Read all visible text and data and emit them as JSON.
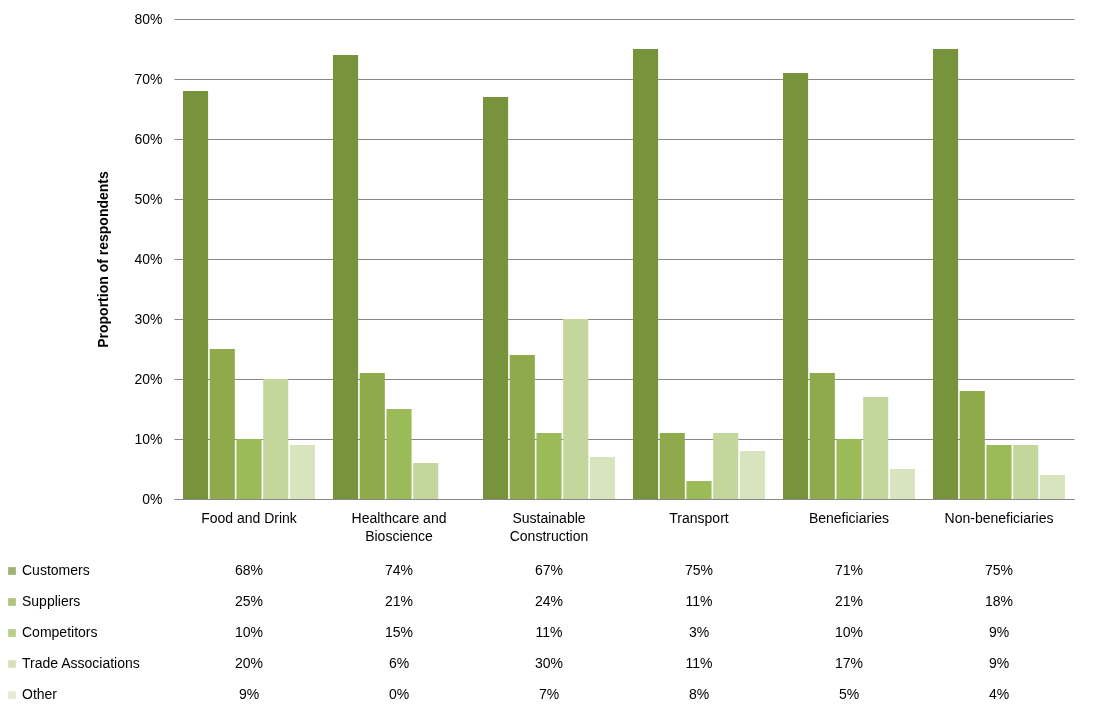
{
  "chart_data": {
    "type": "bar",
    "ylabel": "Proportion of respondents",
    "categories": [
      "Food and Drink",
      "Healthcare and Bioscience",
      "Sustainable Construction",
      "Transport",
      "Beneficiaries",
      "Non-beneficiaries"
    ],
    "series": [
      {
        "name": "Customers",
        "color": "#77933c",
        "values": [
          68,
          74,
          67,
          75,
          71,
          75
        ],
        "value_labels": [
          "68%",
          "74%",
          "67%",
          "75%",
          "71%",
          "75%"
        ]
      },
      {
        "name": "Suppliers",
        "color": "#8eaa4b",
        "values": [
          25,
          21,
          24,
          11,
          21,
          18
        ],
        "value_labels": [
          "25%",
          "21%",
          "24%",
          "11%",
          "21%",
          "18%"
        ]
      },
      {
        "name": "Competitors",
        "color": "#9bbb59",
        "values": [
          10,
          15,
          11,
          3,
          10,
          9
        ],
        "value_labels": [
          "10%",
          "15%",
          "11%",
          "3%",
          "10%",
          "9%"
        ]
      },
      {
        "name": "Trade Associations",
        "color": "#c3d69b",
        "values": [
          20,
          6,
          30,
          11,
          17,
          9
        ],
        "value_labels": [
          "20%",
          "6%",
          "30%",
          "11%",
          "17%",
          "9%"
        ]
      },
      {
        "name": "Other",
        "color": "#d7e4bd",
        "values": [
          9,
          0,
          7,
          8,
          5,
          4
        ],
        "value_labels": [
          "9%",
          "0%",
          "7%",
          "8%",
          "5%",
          "4%"
        ]
      }
    ],
    "ylim": [
      0,
      80
    ],
    "yticks": [
      {
        "value": 0,
        "label": "0%"
      },
      {
        "value": 10,
        "label": "10%"
      },
      {
        "value": 20,
        "label": "20%"
      },
      {
        "value": 30,
        "label": "30%"
      },
      {
        "value": 40,
        "label": "40%"
      },
      {
        "value": 50,
        "label": "50%"
      },
      {
        "value": 60,
        "label": "60%"
      },
      {
        "value": 70,
        "label": "70%"
      },
      {
        "value": 80,
        "label": "80%"
      }
    ],
    "grid": "y",
    "legend": "bottom left"
  }
}
